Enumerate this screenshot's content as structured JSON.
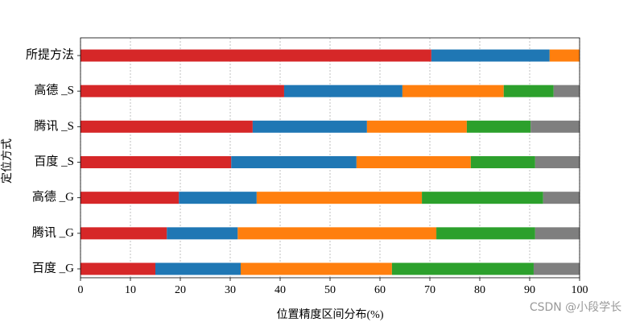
{
  "chart_data": {
    "type": "barh_stacked",
    "xlabel": "位置精度区间分布(%)",
    "ylabel": "定位方式",
    "watermark": "CSDN @小段学长",
    "categories": [
      "百度 _G",
      "腾讯 _G",
      "高德 _G",
      "百度 _S",
      "腾讯 _S",
      "高德 _S",
      "所提方法"
    ],
    "series": [
      {
        "color": "#d62728",
        "values": [
          15.0,
          17.3,
          19.7,
          30.2,
          34.5,
          40.8,
          70.3
        ]
      },
      {
        "color": "#1f77b4",
        "values": [
          17.1,
          14.2,
          15.6,
          25.1,
          22.9,
          23.7,
          23.7
        ]
      },
      {
        "color": "#ff7f0e",
        "values": [
          30.3,
          39.8,
          33.1,
          22.9,
          20.0,
          20.3,
          6.0
        ]
      },
      {
        "color": "#2ca02c",
        "values": [
          28.4,
          19.8,
          24.3,
          12.9,
          12.8,
          10.0,
          0
        ]
      },
      {
        "color": "#7f7f7f",
        "values": [
          9.2,
          8.9,
          7.3,
          8.9,
          9.8,
          5.2,
          0
        ]
      }
    ],
    "xlim": [
      0,
      100
    ],
    "xticks": [
      0,
      10,
      20,
      30,
      40,
      50,
      60,
      70,
      80,
      90,
      100
    ],
    "grid": true
  }
}
